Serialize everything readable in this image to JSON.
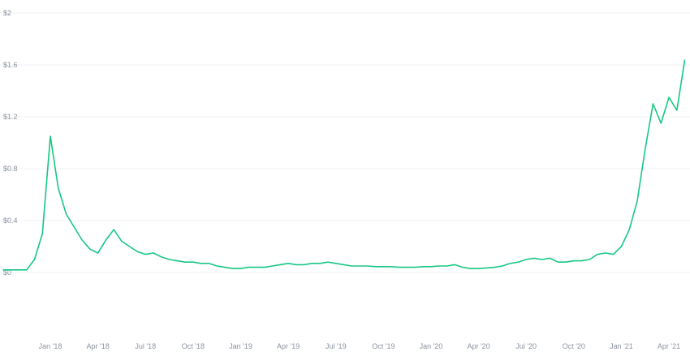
{
  "chart_data": {
    "type": "line",
    "categories": [
      null,
      null,
      null,
      null,
      null,
      null,
      "Jan '18",
      null,
      null,
      null,
      null,
      null,
      "Apr '18",
      null,
      null,
      null,
      null,
      null,
      "Jul '18",
      null,
      null,
      null,
      null,
      null,
      "Oct '18",
      null,
      null,
      null,
      null,
      null,
      "Jan '19",
      null,
      null,
      null,
      null,
      null,
      "Apr '19",
      null,
      null,
      null,
      null,
      null,
      "Jul '19",
      null,
      null,
      null,
      null,
      null,
      "Oct '19",
      null,
      null,
      null,
      null,
      null,
      "Jan '20",
      null,
      null,
      null,
      null,
      null,
      "Apr '20",
      null,
      null,
      null,
      null,
      null,
      "Jul '20",
      null,
      null,
      null,
      null,
      null,
      "Oct '20",
      null,
      null,
      null,
      null,
      null,
      "Jan '21",
      null,
      null,
      null,
      null,
      null,
      "Apr '21",
      null,
      null
    ],
    "series": [
      {
        "color": "#16c784",
        "values": [
          0.02,
          0.02,
          0.02,
          0.02,
          0.1,
          0.3,
          1.05,
          0.65,
          0.45,
          0.35,
          0.25,
          0.18,
          0.15,
          0.25,
          0.33,
          0.24,
          0.2,
          0.16,
          0.14,
          0.15,
          0.12,
          0.1,
          0.09,
          0.08,
          0.08,
          0.07,
          0.07,
          0.05,
          0.04,
          0.03,
          0.03,
          0.04,
          0.04,
          0.04,
          0.05,
          0.06,
          0.07,
          0.06,
          0.06,
          0.07,
          0.07,
          0.08,
          0.07,
          0.06,
          0.05,
          0.05,
          0.05,
          0.045,
          0.045,
          0.045,
          0.04,
          0.04,
          0.04,
          0.045,
          0.045,
          0.05,
          0.05,
          0.06,
          0.04,
          0.03,
          0.03,
          0.035,
          0.04,
          0.05,
          0.07,
          0.08,
          0.1,
          0.11,
          0.1,
          0.11,
          0.08,
          0.08,
          0.09,
          0.09,
          0.1,
          0.14,
          0.15,
          0.14,
          0.2,
          0.33,
          0.55,
          0.95,
          1.3,
          1.15,
          1.35,
          1.25,
          1.64
        ]
      }
    ],
    "ylim": [
      0,
      2.1
    ],
    "yticks": [
      {
        "value": 0,
        "label": "$0"
      },
      {
        "value": 0.4,
        "label": "$0.4"
      },
      {
        "value": 0.8,
        "label": "$0.8"
      },
      {
        "value": 1.2,
        "label": "$1.2"
      },
      {
        "value": 1.6,
        "label": "$1.6"
      },
      {
        "value": 2,
        "label": "$2"
      }
    ],
    "grid": true
  }
}
